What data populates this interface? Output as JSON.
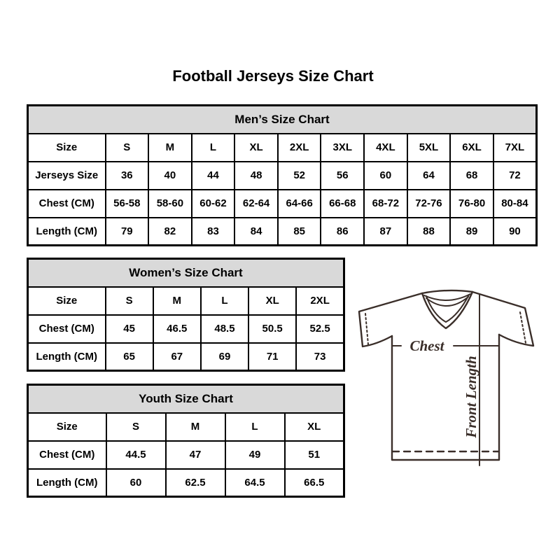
{
  "page": {
    "title": "Football Jerseys Size Chart"
  },
  "tables": {
    "men": {
      "title": "Men’s Size Chart",
      "rows": [
        [
          "Size",
          "S",
          "M",
          "L",
          "XL",
          "2XL",
          "3XL",
          "4XL",
          "5XL",
          "6XL",
          "7XL"
        ],
        [
          "Jerseys Size",
          "36",
          "40",
          "44",
          "48",
          "52",
          "56",
          "60",
          "64",
          "68",
          "72"
        ],
        [
          "Chest (CM)",
          "56-58",
          "58-60",
          "60-62",
          "62-64",
          "64-66",
          "66-68",
          "68-72",
          "72-76",
          "76-80",
          "80-84"
        ],
        [
          "Length (CM)",
          "79",
          "82",
          "83",
          "84",
          "85",
          "86",
          "87",
          "88",
          "89",
          "90"
        ]
      ]
    },
    "women": {
      "title": "Women’s Size Chart",
      "rows": [
        [
          "Size",
          "S",
          "M",
          "L",
          "XL",
          "2XL"
        ],
        [
          "Chest (CM)",
          "45",
          "46.5",
          "48.5",
          "50.5",
          "52.5"
        ],
        [
          "Length (CM)",
          "65",
          "67",
          "69",
          "71",
          "73"
        ]
      ]
    },
    "youth": {
      "title": "Youth Size Chart",
      "rows": [
        [
          "Size",
          "S",
          "M",
          "L",
          "XL"
        ],
        [
          "Chest (CM)",
          "44.5",
          "47",
          "49",
          "51"
        ],
        [
          "Length (CM)",
          "60",
          "62.5",
          "64.5",
          "66.5"
        ]
      ]
    }
  },
  "diagram": {
    "chest_label": "Chest",
    "front_length_label": "Front Length"
  },
  "colors": {
    "header_bg": "#d9d9d9",
    "border_color": "#000000",
    "text_color": "#000000",
    "line_color": "#3a2e29",
    "page_bg": "#ffffff"
  }
}
